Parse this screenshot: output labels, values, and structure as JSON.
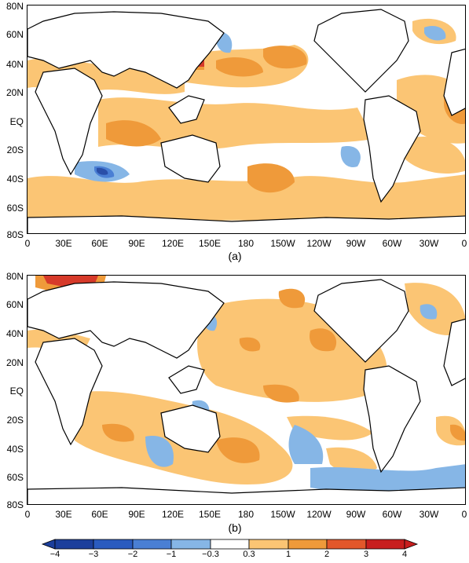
{
  "panels": [
    {
      "label": "(a)"
    },
    {
      "label": "(b)"
    }
  ],
  "lat_ticks": [
    "80N",
    "60N",
    "40N",
    "20N",
    "EQ",
    "20S",
    "40S",
    "60S",
    "80S"
  ],
  "lon_ticks": [
    "0",
    "30E",
    "60E",
    "90E",
    "120E",
    "150E",
    "180",
    "150W",
    "120W",
    "90W",
    "60W",
    "30W",
    "0"
  ],
  "colorbar": {
    "labels": [
      "−4",
      "−3",
      "−2",
      "−1",
      "−0.3",
      "0.3",
      "1",
      "2",
      "3",
      "4"
    ],
    "colors": [
      "#1c3f9c",
      "#2a5bbf",
      "#4a7fd4",
      "#86b6e6",
      "#ffffff",
      "#fbc574",
      "#ef9a3a",
      "#e2572a",
      "#c81e1e"
    ]
  },
  "colors": {
    "land_outline": "#000000",
    "light_orange": "#fbc574",
    "orange": "#ef9a3a",
    "red": "#d63a2a",
    "light_blue": "#86b6e6",
    "blue": "#4a7fd4",
    "dark_blue": "#2a4fa8"
  }
}
